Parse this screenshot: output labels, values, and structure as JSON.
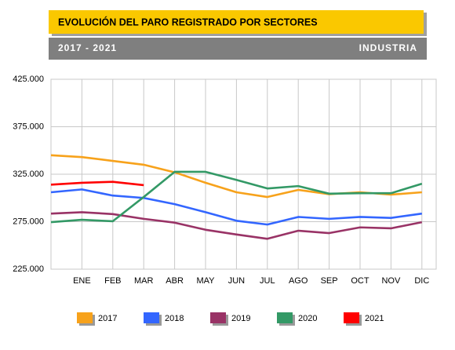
{
  "chart_data": {
    "type": "line",
    "title": "EVOLUCIÓN DEL PARO REGISTRADO POR SECTORES",
    "subtitle": "2017 - 2021",
    "sector": "INDUSTRIA",
    "categories": [
      null,
      "ENE",
      "FEB",
      "MAR",
      "ABR",
      "MAY",
      "JUN",
      "JUL",
      "AGO",
      "SEP",
      "OCT",
      "NOV",
      "DIC"
    ],
    "series": [
      {
        "name": "2017",
        "color": "#f7a21b",
        "values": [
          345000,
          343000,
          339000,
          335000,
          327000,
          316000,
          306000,
          301000,
          308500,
          304000,
          306000,
          303500,
          306000
        ]
      },
      {
        "name": "2018",
        "color": "#3366ff",
        "values": [
          306000,
          309000,
          302500,
          300000,
          293500,
          285000,
          276000,
          272000,
          280000,
          278000,
          280000,
          279000,
          283500
        ]
      },
      {
        "name": "2019",
        "color": "#993366",
        "values": [
          283500,
          285000,
          283000,
          278000,
          274000,
          266500,
          261500,
          257000,
          265500,
          263000,
          269000,
          268000,
          274500
        ]
      },
      {
        "name": "2020",
        "color": "#339966",
        "values": [
          274500,
          277000,
          275500,
          301000,
          327500,
          327500,
          319000,
          310000,
          312500,
          304500,
          305000,
          305000,
          315000
        ]
      },
      {
        "name": "2021",
        "color": "#ff0000",
        "values": [
          314000,
          316000,
          317000,
          313500,
          null,
          null,
          null,
          null,
          null,
          null,
          null,
          null,
          null
        ]
      }
    ],
    "ylim": [
      225000,
      425000
    ],
    "yticks": [
      {
        "value": 225000,
        "label": "225.000"
      },
      {
        "value": 275000,
        "label": "275.000"
      },
      {
        "value": 325000,
        "label": "325.000"
      },
      {
        "value": 375000,
        "label": "375.000"
      },
      {
        "value": 425000,
        "label": "425.000"
      }
    ],
    "grid": true
  }
}
